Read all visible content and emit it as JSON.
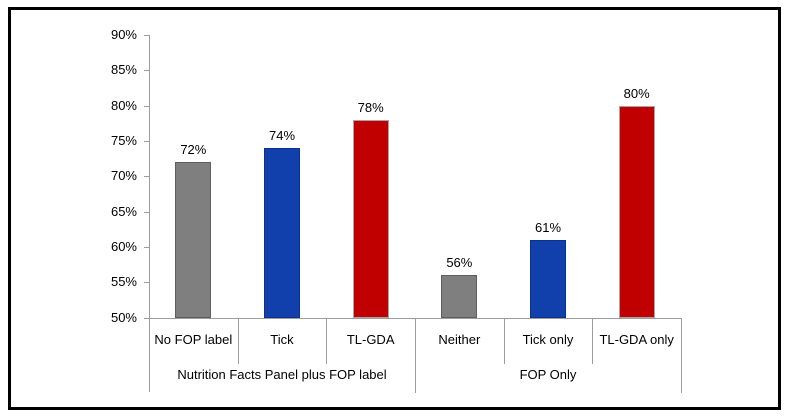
{
  "chart_data": {
    "type": "bar",
    "title": "",
    "xlabel": "",
    "ylabel": "",
    "ylim": [
      50,
      90
    ],
    "y_tick_step": 5,
    "y_tick_labels": [
      "90%",
      "85%",
      "80%",
      "75%",
      "70%",
      "65%",
      "60%",
      "55%",
      "50%"
    ],
    "grid": false,
    "legend": "none",
    "axis_color": "#9d9d9d",
    "text_color": "#000000",
    "frame_color": "#000000",
    "background": "#ffffff",
    "groups": [
      {
        "label": "Nutrition Facts Panel plus FOP label",
        "bars": [
          {
            "category": "No FOP label",
            "value": 72,
            "value_label": "72%",
            "color": "#7f7f7f",
            "border_color": "#5e5e5e"
          },
          {
            "category": "Tick",
            "value": 74,
            "value_label": "74%",
            "color": "#1140ad",
            "border_color": "#0c318c"
          },
          {
            "category": "TL-GDA",
            "value": 78,
            "value_label": "78%",
            "color": "#c00000",
            "border_color": "#a6a6a6"
          }
        ]
      },
      {
        "label": "FOP Only",
        "bars": [
          {
            "category": "Neither",
            "value": 56,
            "value_label": "56%",
            "color": "#7f7f7f",
            "border_color": "#5e5e5e"
          },
          {
            "category": "Tick only",
            "value": 61,
            "value_label": "61%",
            "color": "#1140ad",
            "border_color": "#0c318c"
          },
          {
            "category": "TL-GDA only",
            "value": 80,
            "value_label": "80%",
            "color": "#c00000",
            "border_color": "#a6a6a6"
          }
        ]
      }
    ]
  }
}
